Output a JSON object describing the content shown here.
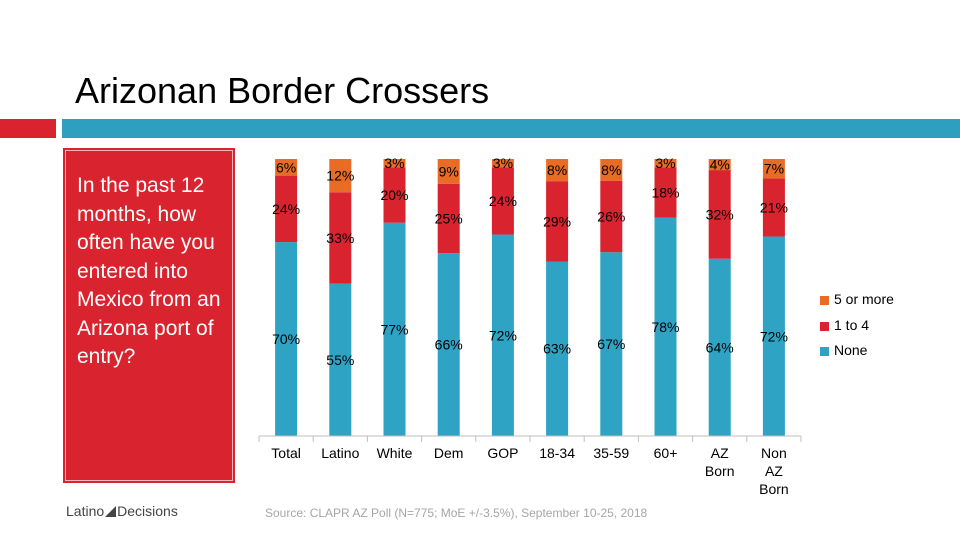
{
  "title": "Arizonan Border Crossers",
  "question": " In the past 12 months, how often have you entered into Mexico  from an Arizona port of entry?",
  "logo": {
    "left": "Latino",
    "right": "Decisions"
  },
  "source": "Source: CLAPR AZ Poll (N=775; MoE +/-3.5%), September 10-25, 2018",
  "colors": {
    "accent_red": "#d9232e",
    "accent_teal": "#2e9fbf",
    "none": "#2ea3c4",
    "one_to_four": "#d9232e",
    "five_plus": "#e86c25"
  },
  "chart_data": {
    "type": "bar",
    "stacked": true,
    "percent_stacked": true,
    "categories": [
      "Total",
      "Latino",
      "White",
      "Dem",
      "GOP",
      "18-34",
      "35-59",
      "60+",
      "AZ\nBorn",
      "Non\nAZ\nBorn"
    ],
    "series": [
      {
        "name": "None",
        "color": "#2ea3c4",
        "values": [
          70,
          55,
          77,
          66,
          72,
          63,
          67,
          78,
          64,
          72
        ],
        "labels": [
          "70%",
          "55%",
          "77%",
          "66%",
          "72%",
          "63%",
          "67%",
          "78%",
          "64%",
          "72%"
        ]
      },
      {
        "name": "1 to 4",
        "color": "#d9232e",
        "values": [
          24,
          33,
          20,
          25,
          24,
          29,
          26,
          18,
          32,
          21
        ],
        "labels": [
          "24%",
          "33%",
          "20%",
          "25%",
          "24%",
          "29%",
          "26%",
          "18%",
          "32%",
          "21%"
        ]
      },
      {
        "name": "5 or more",
        "color": "#e86c25",
        "values": [
          6,
          12,
          3,
          9,
          3,
          8,
          8,
          3,
          4,
          7
        ],
        "labels": [
          "6%",
          "12%",
          "3%",
          "9%",
          "3%",
          "8%",
          "8%",
          "3%",
          "4%",
          "7%"
        ]
      }
    ],
    "legend": {
      "position": "right",
      "order": [
        "5 or more",
        "1 to 4",
        "None"
      ]
    }
  }
}
